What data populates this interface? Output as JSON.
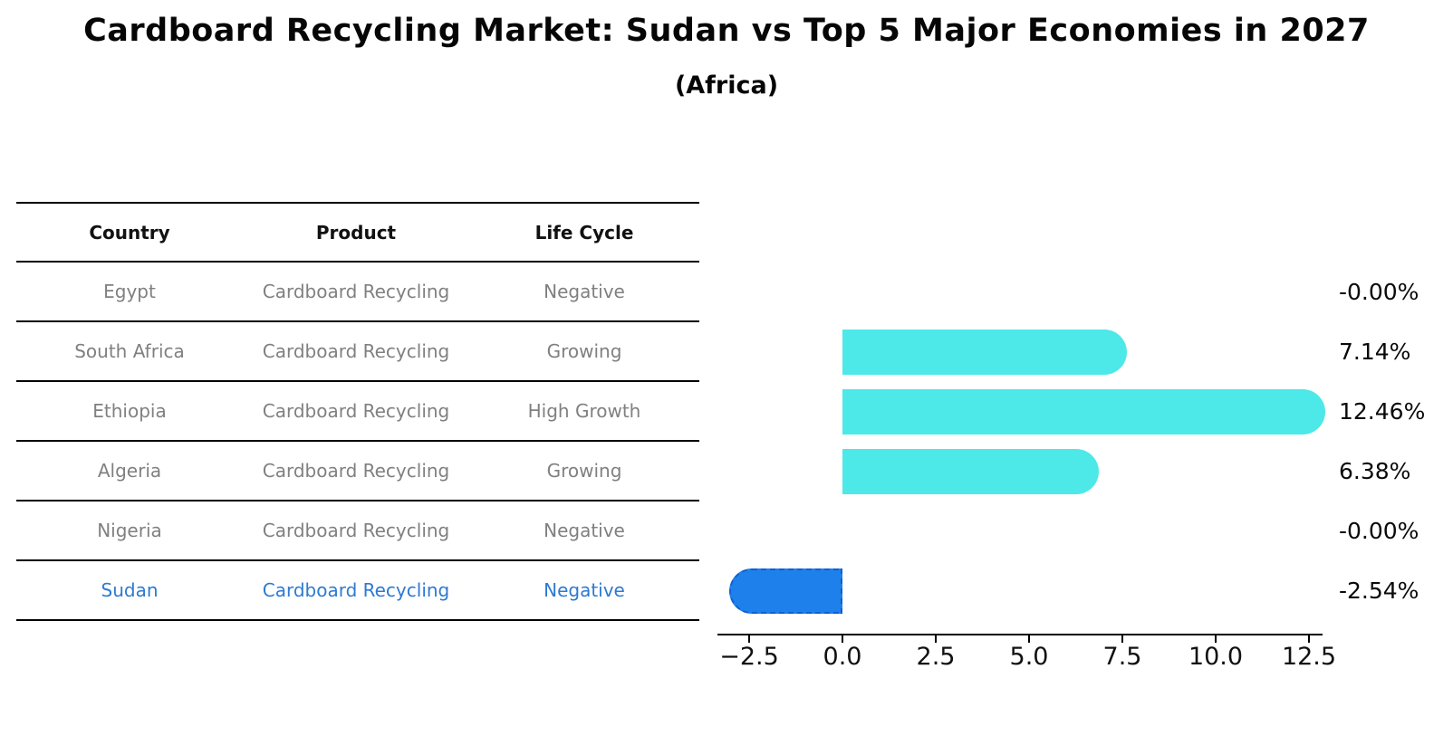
{
  "page": {
    "title": "Cardboard Recycling Market: Sudan vs Top 5 Major Economies in 2027",
    "subtitle": "(Africa)"
  },
  "table": {
    "columns": [
      "Country",
      "Product",
      "Life Cycle"
    ],
    "rows": [
      {
        "country": "Egypt",
        "product": "Cardboard Recycling",
        "life_cycle": "Negative",
        "highlight": false
      },
      {
        "country": "South Africa",
        "product": "Cardboard Recycling",
        "life_cycle": "Growing",
        "highlight": false
      },
      {
        "country": "Ethiopia",
        "product": "Cardboard Recycling",
        "life_cycle": "High Growth",
        "highlight": false
      },
      {
        "country": "Algeria",
        "product": "Cardboard Recycling",
        "life_cycle": "Growing",
        "highlight": false
      },
      {
        "country": "Nigeria",
        "product": "Cardboard Recycling",
        "life_cycle": "Negative",
        "highlight": false
      },
      {
        "country": "Sudan",
        "product": "Cardboard Recycling",
        "life_cycle": "Negative",
        "highlight": true
      }
    ]
  },
  "chart_data": {
    "type": "bar",
    "orientation": "horizontal",
    "title": "Cardboard Recycling Market: Sudan vs Top 5 Major Economies in 2027",
    "subtitle": "(Africa)",
    "categories": [
      "Egypt",
      "South Africa",
      "Ethiopia",
      "Algeria",
      "Nigeria",
      "Sudan"
    ],
    "values": [
      -0.0,
      7.14,
      12.46,
      6.38,
      -0.0,
      -2.54
    ],
    "value_labels": [
      "-0.00%",
      "7.14%",
      "12.46%",
      "6.38%",
      "-0.00%",
      "-2.54%"
    ],
    "xlabel": "",
    "ylabel": "",
    "xlim": [
      -3.4,
      13.0
    ],
    "x_ticks": [
      -2.5,
      0.0,
      2.5,
      5.0,
      7.5,
      10.0,
      12.5
    ],
    "x_tick_labels": [
      "−2.5",
      "0.0",
      "2.5",
      "5.0",
      "7.5",
      "10.0",
      "12.5"
    ],
    "grid": false,
    "legend": false,
    "bar_color": "#4DE8E8",
    "highlight_index": 5,
    "highlight_color": "#1E80EB",
    "highlight_border_color": "#0F5FD0",
    "label_color": "#0a0a0a"
  }
}
